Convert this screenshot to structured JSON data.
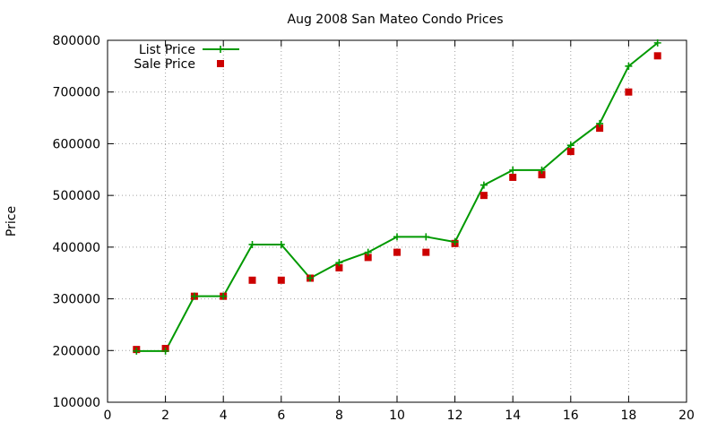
{
  "chart_data": {
    "type": "line",
    "title": "Aug 2008 San Mateo Condo Prices",
    "xlabel": "",
    "ylabel": "Price",
    "xlim": [
      0,
      20
    ],
    "ylim": [
      100000,
      800000
    ],
    "x_ticks": [
      "0",
      "2",
      "4",
      "6",
      "8",
      "10",
      "12",
      "14",
      "16",
      "18",
      "20"
    ],
    "y_ticks": [
      "100000",
      "200000",
      "300000",
      "400000",
      "500000",
      "600000",
      "700000",
      "800000"
    ],
    "grid": true,
    "legend_position": "top-left",
    "x": [
      1,
      2,
      3,
      4,
      5,
      6,
      7,
      8,
      9,
      10,
      11,
      12,
      13,
      14,
      15,
      16,
      17,
      18,
      19
    ],
    "series": [
      {
        "name": "List Price",
        "style": "line-with-plus-markers",
        "color": "#009900",
        "values": [
          199000,
          199000,
          305000,
          305000,
          405000,
          405000,
          340000,
          370000,
          390000,
          420000,
          420000,
          410000,
          520000,
          549000,
          549000,
          597000,
          639000,
          750000,
          795000
        ]
      },
      {
        "name": "Sale Price",
        "style": "square-markers",
        "color": "#cc0000",
        "values": [
          202000,
          204000,
          305000,
          305000,
          336000,
          336000,
          340000,
          360000,
          380000,
          390000,
          390000,
          407000,
          500000,
          535000,
          540000,
          585000,
          630000,
          700000,
          770000
        ]
      }
    ]
  }
}
